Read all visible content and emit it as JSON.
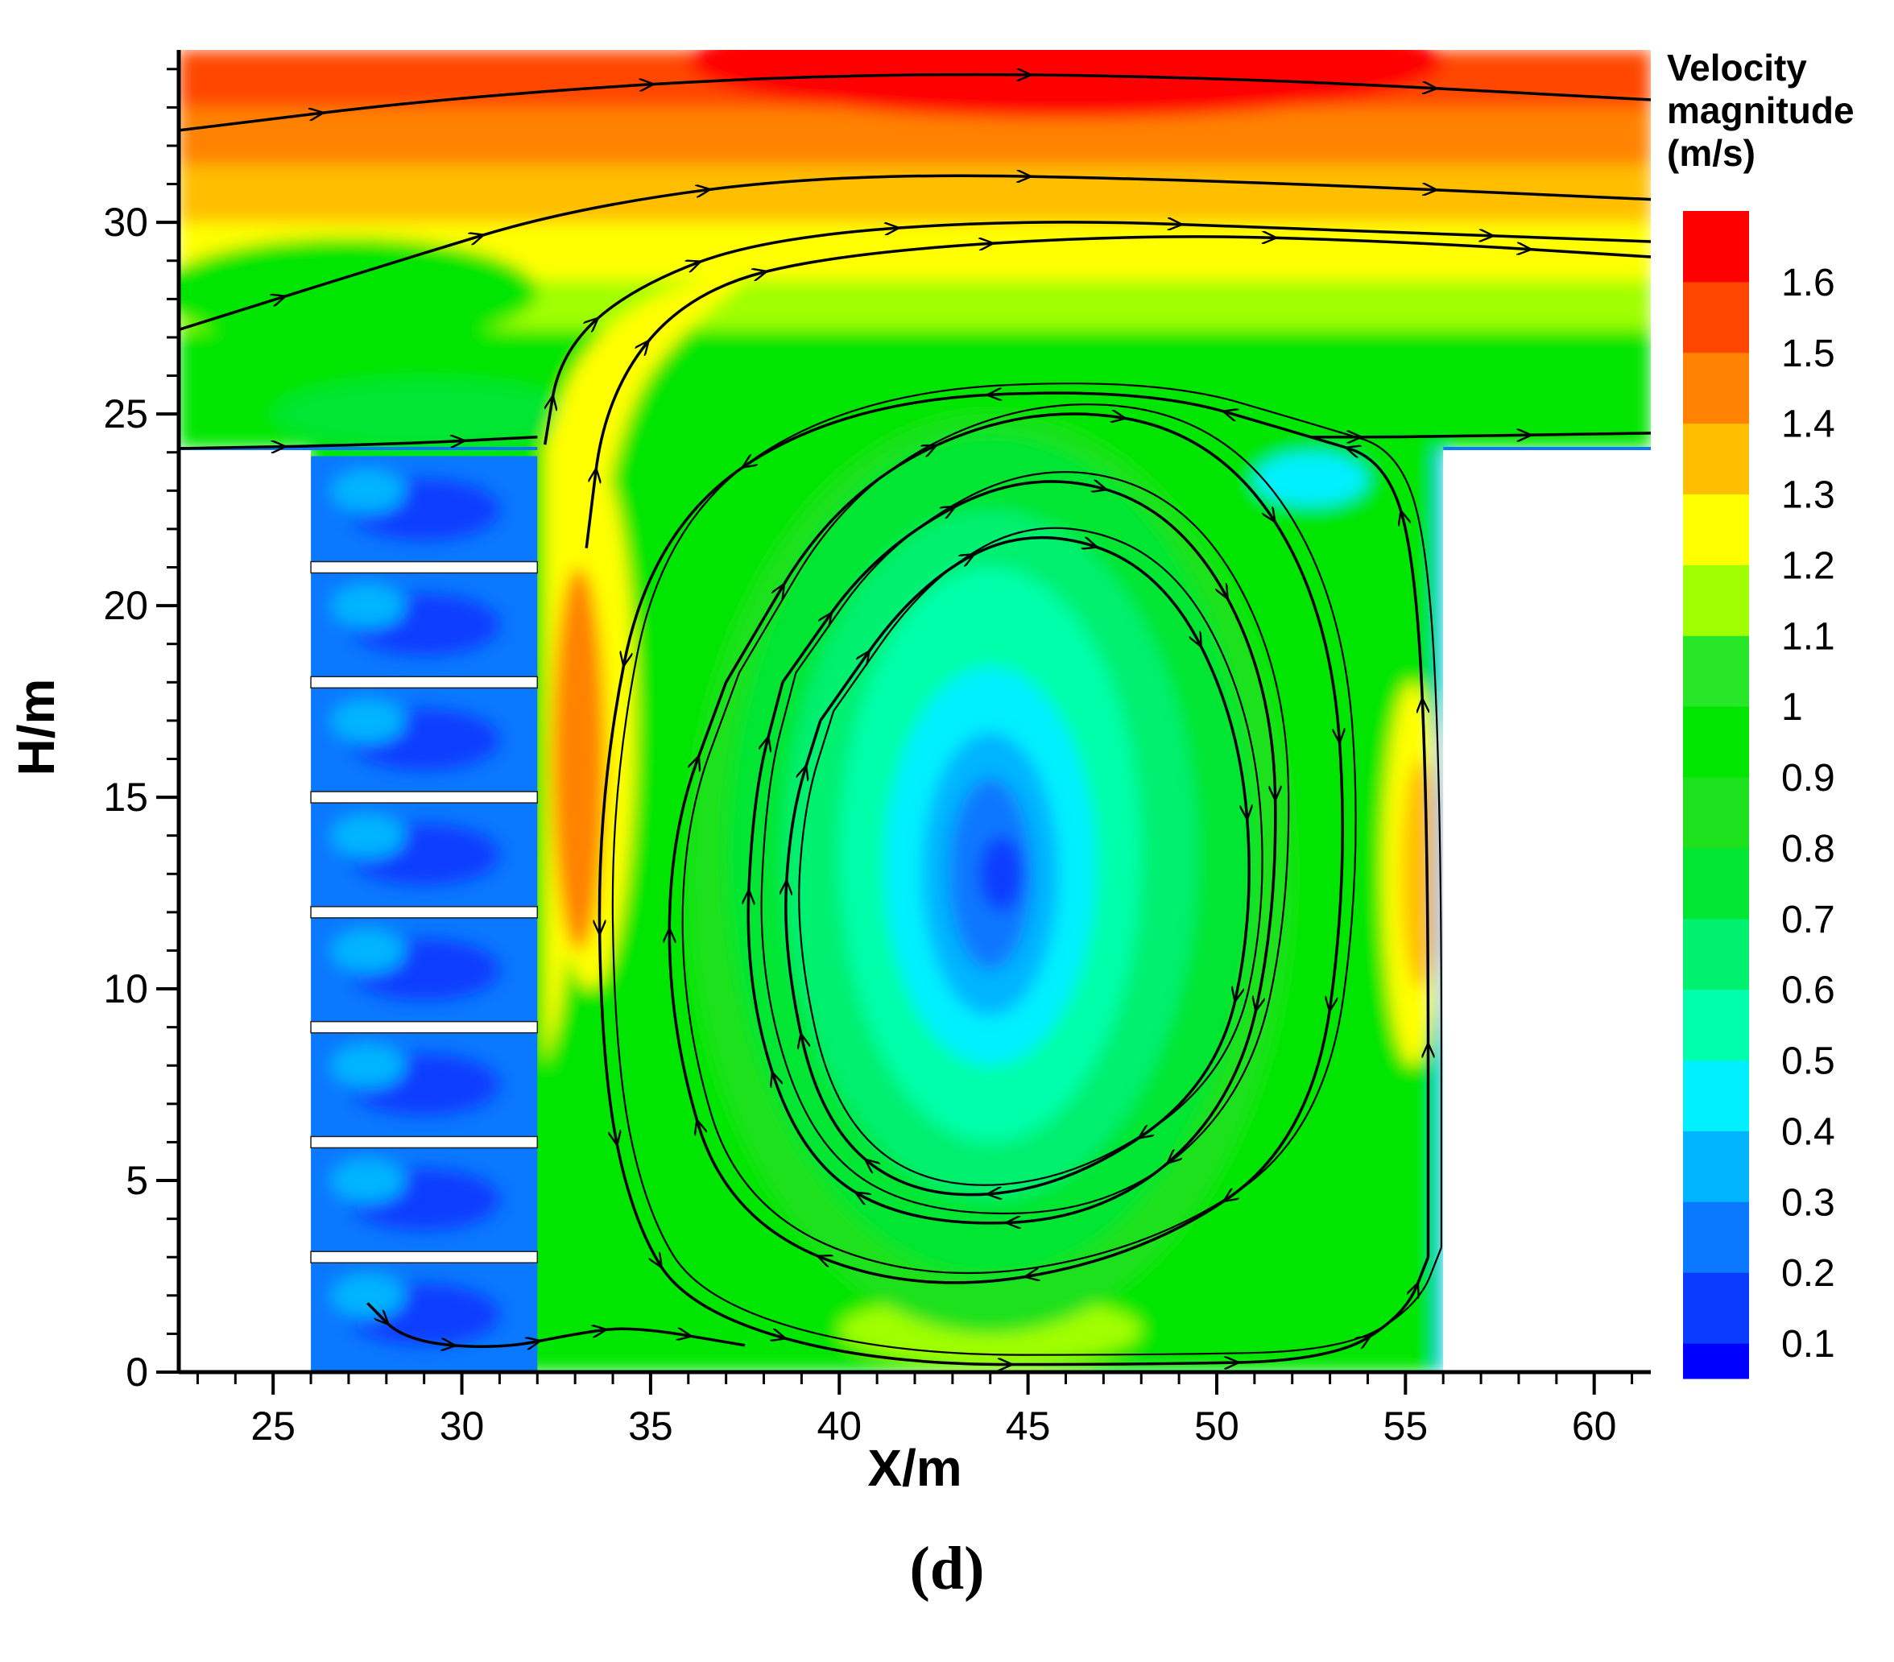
{
  "panel_label": "(d)",
  "chart_data": {
    "type": "heatmap",
    "subtype": "filled contour with streamlines",
    "title": "",
    "xlabel": "X/m",
    "ylabel": "H/m",
    "xlim": [
      22.5,
      61.5
    ],
    "ylim": [
      0,
      34.5
    ],
    "xticks": [
      25,
      30,
      35,
      40,
      45,
      50,
      55,
      60
    ],
    "xtick_labels": [
      "25",
      "30",
      "35",
      "40",
      "45",
      "50",
      "55",
      "60"
    ],
    "yticks": [
      0,
      5,
      10,
      15,
      20,
      25,
      30
    ],
    "ytick_labels": [
      "0",
      "5",
      "10",
      "15",
      "20",
      "25",
      "30"
    ],
    "grid": false,
    "colorbar": {
      "title_lines": [
        "Velocity",
        "magnitude",
        "(m/s)"
      ],
      "placement": "right",
      "levels": [
        "0.1",
        "0.2",
        "0.3",
        "0.4",
        "0.5",
        "0.6",
        "0.7",
        "0.8",
        "0.9",
        "1",
        "1.1",
        "1.2",
        "1.3",
        "1.4",
        "1.5",
        "1.6"
      ],
      "colors": [
        "#0000ff",
        "#0a3cff",
        "#0a78ff",
        "#00b4ff",
        "#00f0ff",
        "#00ffaa",
        "#00f070",
        "#00e632",
        "#1ee11e",
        "#00e600",
        "#28e628",
        "#a0ff00",
        "#ffff00",
        "#ffbe00",
        "#ff8200",
        "#ff4600",
        "#ff0000"
      ]
    },
    "geometry_data": {
      "channel_floor_y": 24.1,
      "cavity_x": [
        26,
        56
      ],
      "dead_zone_x": [
        26,
        32
      ],
      "dead_zone_dividers_y": [
        21,
        18,
        15,
        12,
        9,
        6,
        3
      ]
    },
    "fields": {
      "core_vortex_center": {
        "x": 44,
        "y": 13,
        "value": 0.1
      },
      "top_jet_max": {
        "x": 45,
        "y": 34,
        "value": 1.6
      }
    },
    "streamlines": [
      {
        "name": "top jet",
        "points": [
          [
            22.5,
            32.4
          ],
          [
            30,
            33.3
          ],
          [
            40,
            33.9
          ],
          [
            50,
            33.8
          ],
          [
            61.5,
            33.2
          ]
        ]
      },
      {
        "name": "upper channel",
        "points": [
          [
            22.5,
            27.2
          ],
          [
            28,
            28.9
          ],
          [
            33,
            30.4
          ],
          [
            40,
            31.3
          ],
          [
            50,
            31.1
          ],
          [
            61.5,
            30.6
          ]
        ]
      },
      {
        "name": "separating streamline 1",
        "points": [
          [
            32.2,
            24.2
          ],
          [
            32.6,
            26.6
          ],
          [
            34.5,
            28.3
          ],
          [
            38,
            29.6
          ],
          [
            45,
            30.1
          ],
          [
            53,
            29.8
          ],
          [
            61.5,
            29.5
          ]
        ]
      },
      {
        "name": "separating streamline 2",
        "points": [
          [
            33.3,
            21.5
          ],
          [
            33.8,
            25.5
          ],
          [
            36,
            28.2
          ],
          [
            40,
            29.2
          ],
          [
            48,
            29.7
          ],
          [
            55,
            29.5
          ],
          [
            61.5,
            29.1
          ]
        ]
      },
      {
        "name": "channel floor flow",
        "points": [
          [
            22.5,
            24.1
          ],
          [
            28,
            24.2
          ],
          [
            32,
            24.4
          ]
        ]
      },
      {
        "name": "outer cavity vortex",
        "points": [
          [
            55.6,
            3
          ],
          [
            55.6,
            14
          ],
          [
            55.3,
            21
          ],
          [
            54.5,
            23.8
          ],
          [
            52.5,
            24.4
          ],
          [
            48,
            25.7
          ],
          [
            40,
            25.3
          ],
          [
            35,
            22
          ],
          [
            33.6,
            15
          ],
          [
            33.7,
            8
          ],
          [
            34.5,
            4
          ],
          [
            36,
            1.6
          ],
          [
            41,
            0.2
          ],
          [
            48,
            0.2
          ],
          [
            53,
            0.3
          ],
          [
            55,
            1.5
          ],
          [
            55.6,
            3
          ]
        ]
      },
      {
        "name": "outer exit",
        "points": [
          [
            52.5,
            24.4
          ],
          [
            55,
            24.4
          ],
          [
            61.5,
            24.5
          ]
        ]
      },
      {
        "name": "ring 1",
        "points": [
          [
            37,
            18
          ],
          [
            40,
            23
          ],
          [
            45,
            25.3
          ],
          [
            50,
            24.5
          ],
          [
            53,
            20
          ],
          [
            53.5,
            13
          ],
          [
            52.5,
            6
          ],
          [
            48,
            3
          ],
          [
            42,
            2
          ],
          [
            37,
            4
          ],
          [
            35.5,
            9
          ],
          [
            35.5,
            14
          ],
          [
            37,
            18
          ]
        ]
      },
      {
        "name": "ring 2",
        "points": [
          [
            38.5,
            18
          ],
          [
            41,
            21.5
          ],
          [
            45,
            23.6
          ],
          [
            49,
            22.5
          ],
          [
            51.5,
            18
          ],
          [
            51.6,
            12
          ],
          [
            50.5,
            7
          ],
          [
            47,
            4
          ],
          [
            42,
            3.8
          ],
          [
            39,
            5.5
          ],
          [
            37.5,
            10
          ],
          [
            37.7,
            15
          ],
          [
            38.5,
            18
          ]
        ]
      },
      {
        "name": "ring 3",
        "points": [
          [
            39.5,
            17
          ],
          [
            42,
            20.5
          ],
          [
            45,
            22.1
          ],
          [
            48.5,
            21
          ],
          [
            50.6,
            17
          ],
          [
            51,
            12
          ],
          [
            50,
            7.5
          ],
          [
            46,
            4.8
          ],
          [
            42,
            4.5
          ],
          [
            39.5,
            6.5
          ],
          [
            38.5,
            11
          ],
          [
            38.7,
            14.5
          ],
          [
            39.5,
            17
          ]
        ]
      },
      {
        "name": "dead zone eddy",
        "points": [
          [
            27.5,
            1.8
          ],
          [
            28.5,
            0.8
          ],
          [
            31,
            0.6
          ],
          [
            33,
            1
          ],
          [
            34.5,
            1.2
          ],
          [
            37.5,
            0.7
          ]
        ]
      }
    ]
  }
}
